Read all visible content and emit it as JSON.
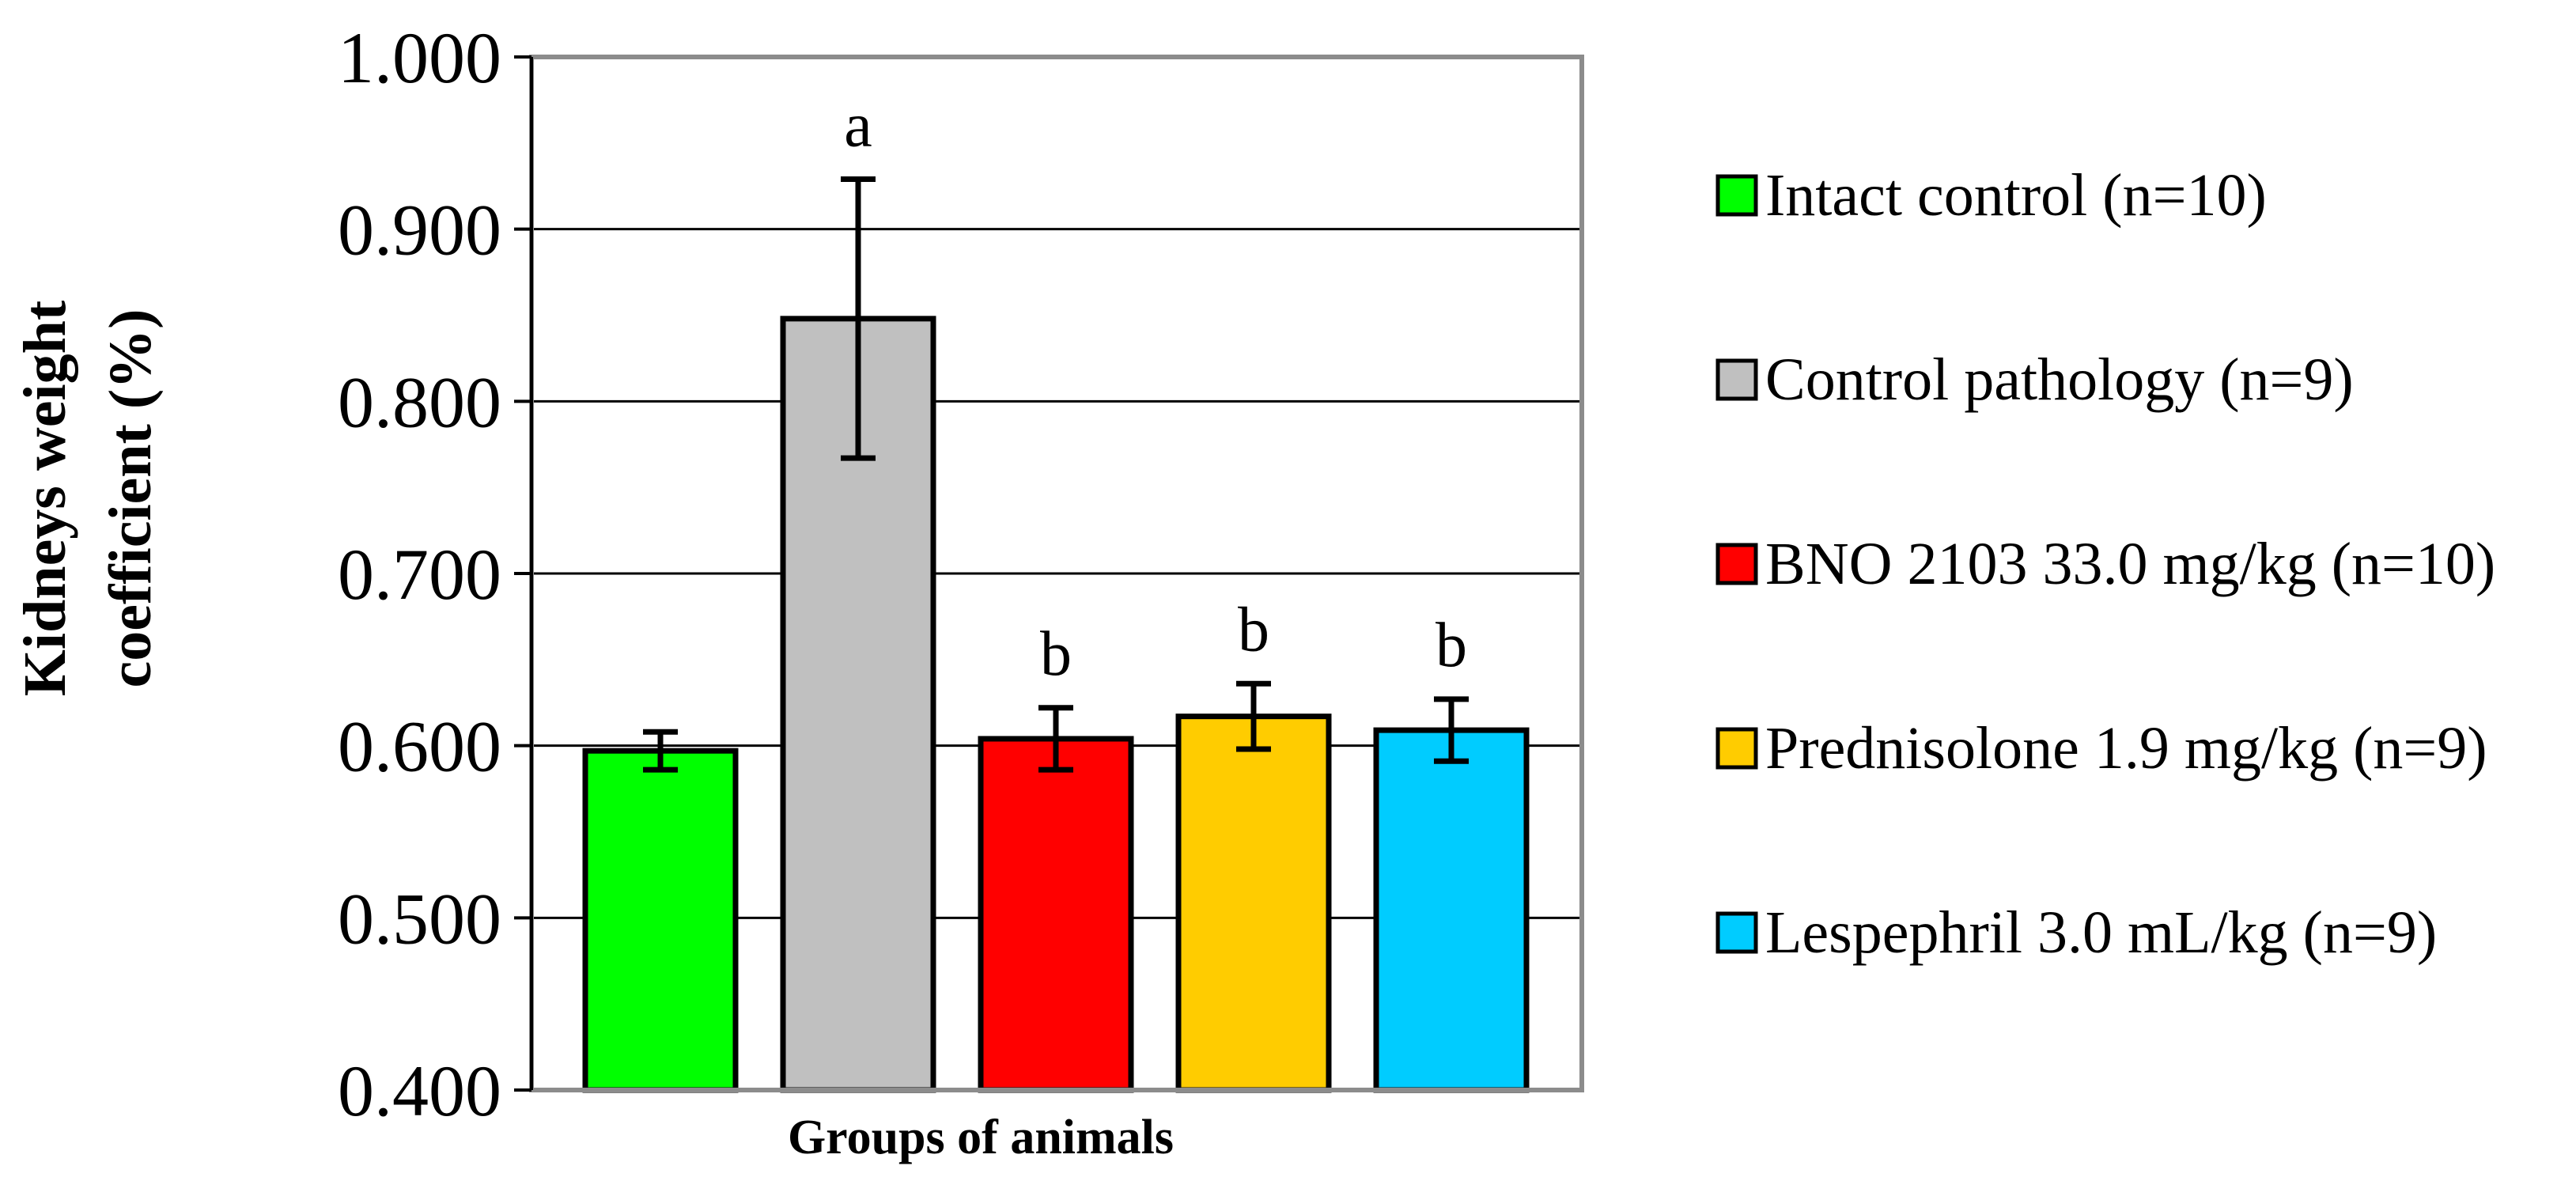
{
  "chart_data": {
    "type": "bar",
    "title": "",
    "xlabel": "Groups of animals",
    "ylabel_lines": [
      "Kidneys weight",
      "coefficient (%)"
    ],
    "ylim": [
      0.4,
      1.0
    ],
    "yticks": [
      0.4,
      0.5,
      0.6,
      0.7,
      0.8,
      0.9,
      1.0
    ],
    "ytick_labels": [
      "0.400",
      "0.500",
      "0.600",
      "0.700",
      "0.800",
      "0.900",
      "1.000"
    ],
    "grid": true,
    "legend_position": "right",
    "series": [
      {
        "name": "Intact control (n=10)",
        "value": 0.597,
        "error": 0.011,
        "significance": "",
        "color": "#00ff00"
      },
      {
        "name": "Control pathology (n=9)",
        "value": 0.848,
        "error": 0.081,
        "significance": "a",
        "color": "#c0c0c0"
      },
      {
        "name": "BNO 2103 33.0 mg/kg (n=10)",
        "value": 0.604,
        "error": 0.018,
        "significance": "b",
        "color": "#ff0000"
      },
      {
        "name": "Prednisolone 1.9 mg/kg (n=9)",
        "value": 0.617,
        "error": 0.019,
        "significance": "b",
        "color": "#ffcc00"
      },
      {
        "name": "Lespephril 3.0 mL/kg (n=9)",
        "value": 0.609,
        "error": 0.018,
        "significance": "b",
        "color": "#00ccff"
      }
    ]
  }
}
